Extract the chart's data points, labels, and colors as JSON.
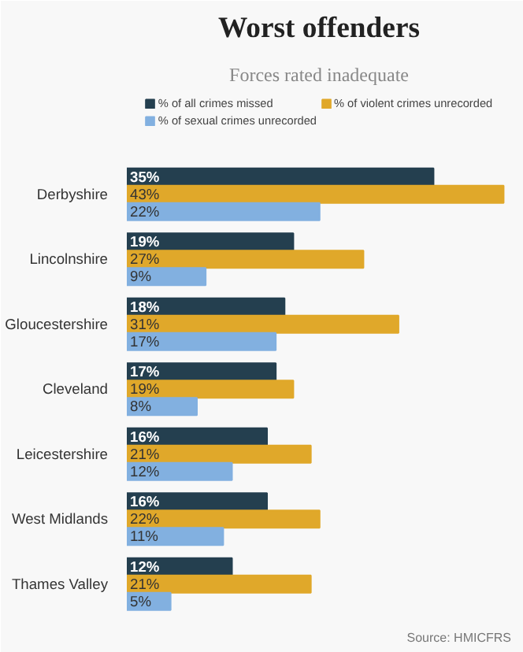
{
  "chart_data": {
    "type": "bar",
    "orientation": "horizontal",
    "title": "Worst offenders",
    "subtitle": "Forces rated inadequate",
    "categories": [
      "Derbyshire",
      "Lincolnshire",
      "Gloucestershire",
      "Cleveland",
      "Leicestershire",
      "West Midlands",
      "Thames Valley"
    ],
    "series": [
      {
        "name": "% of all crimes missed",
        "color": "#243f4f",
        "values": [
          35,
          19,
          18,
          17,
          16,
          16,
          12
        ],
        "value_labels": [
          "35%",
          "19%",
          "18%",
          "17%",
          "16%",
          "16%",
          "12%"
        ]
      },
      {
        "name": "% of violent crimes unrecorded",
        "color": "#e0a82a",
        "values": [
          43,
          27,
          31,
          19,
          21,
          22,
          21
        ],
        "value_labels": [
          "43%",
          "27%",
          "31%",
          "19%",
          "21%",
          "22%",
          "21%"
        ]
      },
      {
        "name": "% of sexual crimes unrecorded",
        "color": "#82b0e0",
        "values": [
          22,
          9,
          17,
          8,
          12,
          11,
          5
        ],
        "value_labels": [
          "22%",
          "9%",
          "17%",
          "8%",
          "12%",
          "11%",
          "5%"
        ]
      }
    ],
    "legend": "top",
    "tick_labels": "y",
    "annotations": [
      "Source: HMICFRS"
    ]
  }
}
